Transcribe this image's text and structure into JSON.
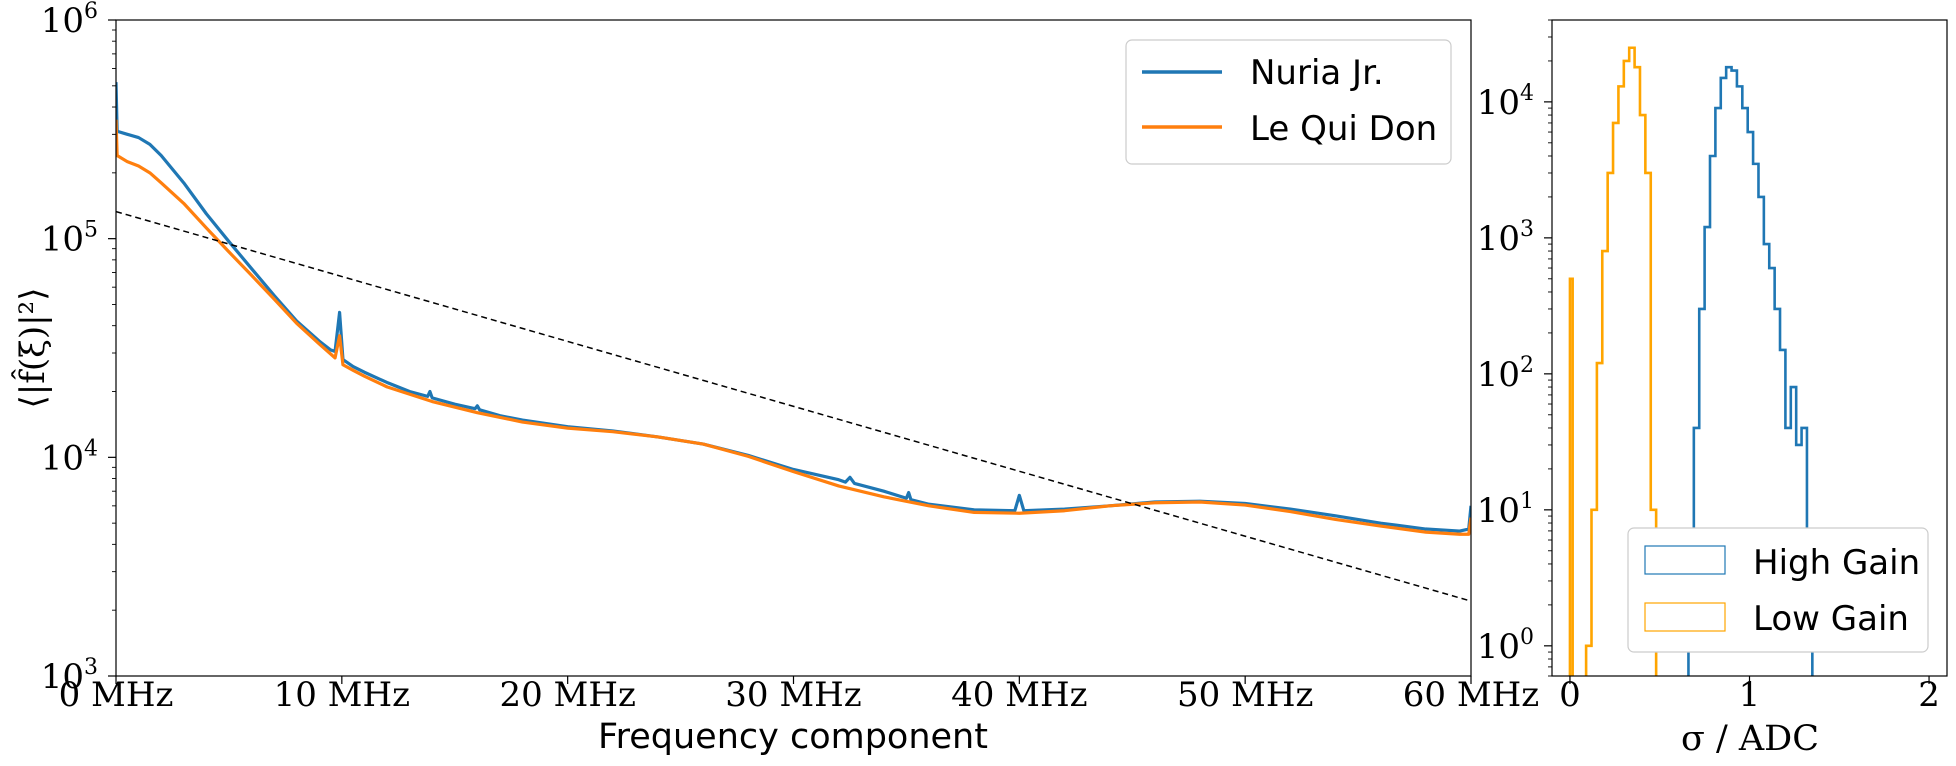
{
  "chart_data": [
    {
      "type": "line",
      "xlabel": "Frequency component",
      "ylabel": "⟨|f̂(ξ)|²⟩",
      "x_unit": "MHz",
      "xlim": [
        0,
        60
      ],
      "ylim": [
        1000,
        1000000
      ],
      "yscale": "log",
      "grid": false,
      "legend_position": "top-right",
      "x_ticks": [
        0,
        10,
        20,
        30,
        40,
        50,
        60
      ],
      "x_tick_labels": [
        "0 MHz",
        "10 MHz",
        "20 MHz",
        "30 MHz",
        "40 MHz",
        "50 MHz",
        "60 MHz"
      ],
      "y_ticks": [
        1000,
        10000,
        100000,
        1000000
      ],
      "y_tick_labels": [
        {
          "base": "10",
          "exp": "3"
        },
        {
          "base": "10",
          "exp": "4"
        },
        {
          "base": "10",
          "exp": "5"
        },
        {
          "base": "10",
          "exp": "6"
        }
      ],
      "series": [
        {
          "name": "Nuria Jr.",
          "color": "#1f77b4",
          "points": [
            [
              0,
              520000
            ],
            [
              0.05,
              310000
            ],
            [
              0.5,
              300000
            ],
            [
              1,
              290000
            ],
            [
              1.5,
              270000
            ],
            [
              2,
              240000
            ],
            [
              3,
              180000
            ],
            [
              4,
              130000
            ],
            [
              5,
              97000
            ],
            [
              6,
              73000
            ],
            [
              7,
              55000
            ],
            [
              8,
              42000
            ],
            [
              9,
              34000
            ],
            [
              9.5,
              31000
            ],
            [
              9.7,
              30500
            ],
            [
              9.9,
              46000
            ],
            [
              10.05,
              28000
            ],
            [
              10.5,
              26000
            ],
            [
              11,
              24500
            ],
            [
              12,
              22000
            ],
            [
              13,
              20000
            ],
            [
              13.8,
              19000
            ],
            [
              13.9,
              20000
            ],
            [
              14,
              18700
            ],
            [
              15,
              17500
            ],
            [
              15.9,
              16700
            ],
            [
              16,
              17200
            ],
            [
              16.1,
              16500
            ],
            [
              17,
              15500
            ],
            [
              18,
              14800
            ],
            [
              20,
              13800
            ],
            [
              22,
              13200
            ],
            [
              24,
              12400
            ],
            [
              26,
              11500
            ],
            [
              28,
              10200
            ],
            [
              30,
              8800
            ],
            [
              32,
              7900
            ],
            [
              32.3,
              7700
            ],
            [
              32.5,
              8100
            ],
            [
              32.7,
              7600
            ],
            [
              34,
              7000
            ],
            [
              35,
              6500
            ],
            [
              35.1,
              6900
            ],
            [
              35.2,
              6400
            ],
            [
              36,
              6100
            ],
            [
              38,
              5750
            ],
            [
              39.8,
              5700
            ],
            [
              40,
              6700
            ],
            [
              40.2,
              5700
            ],
            [
              42,
              5800
            ],
            [
              44,
              6000
            ],
            [
              46,
              6250
            ],
            [
              48,
              6300
            ],
            [
              50,
              6150
            ],
            [
              52,
              5800
            ],
            [
              54,
              5400
            ],
            [
              56,
              5000
            ],
            [
              58,
              4700
            ],
            [
              59.5,
              4600
            ],
            [
              59.9,
              4700
            ],
            [
              60,
              6000
            ]
          ]
        },
        {
          "name": "Le Qui Don",
          "color": "#ff7f0e",
          "points": [
            [
              0,
              350000
            ],
            [
              0.05,
              240000
            ],
            [
              0.5,
              225000
            ],
            [
              1,
              215000
            ],
            [
              1.5,
              200000
            ],
            [
              2,
              180000
            ],
            [
              3,
              145000
            ],
            [
              4,
              112000
            ],
            [
              5,
              87000
            ],
            [
              6,
              68000
            ],
            [
              7,
              53000
            ],
            [
              8,
              41000
            ],
            [
              9,
              33000
            ],
            [
              9.7,
              28500
            ],
            [
              9.9,
              36000
            ],
            [
              10.05,
              26500
            ],
            [
              10.5,
              25000
            ],
            [
              11,
              23500
            ],
            [
              12,
              21000
            ],
            [
              14,
              18000
            ],
            [
              16,
              16000
            ],
            [
              18,
              14500
            ],
            [
              20,
              13600
            ],
            [
              22,
              13100
            ],
            [
              24,
              12400
            ],
            [
              26,
              11500
            ],
            [
              28,
              10100
            ],
            [
              30,
              8600
            ],
            [
              32,
              7400
            ],
            [
              34,
              6600
            ],
            [
              36,
              6000
            ],
            [
              38,
              5600
            ],
            [
              40,
              5550
            ],
            [
              42,
              5700
            ],
            [
              44,
              6000
            ],
            [
              46,
              6200
            ],
            [
              48,
              6250
            ],
            [
              50,
              6050
            ],
            [
              52,
              5650
            ],
            [
              54,
              5200
            ],
            [
              56,
              4850
            ],
            [
              58,
              4550
            ],
            [
              59.5,
              4450
            ],
            [
              59.9,
              4450
            ],
            [
              60,
              5300
            ]
          ]
        },
        {
          "name": "",
          "style": "dashed",
          "color": "#000000",
          "points": [
            [
              0,
              133000
            ],
            [
              60,
              2200
            ]
          ]
        }
      ]
    },
    {
      "type": "histogram",
      "xlabel": "σ / ADC",
      "xlim": [
        -0.1,
        2.1
      ],
      "ylim": [
        0.6,
        40000
      ],
      "yscale": "log",
      "grid": false,
      "legend_position": "bottom-right",
      "x_ticks": [
        0,
        1,
        2
      ],
      "x_tick_labels": [
        "0",
        "1",
        "2"
      ],
      "y_ticks": [
        1,
        10,
        100,
        1000,
        10000
      ],
      "y_tick_labels": [
        {
          "base": "10",
          "exp": "0"
        },
        {
          "base": "10",
          "exp": "1"
        },
        {
          "base": "10",
          "exp": "2"
        },
        {
          "base": "10",
          "exp": "3"
        },
        {
          "base": "10",
          "exp": "4"
        }
      ],
      "series": [
        {
          "name": "High Gain",
          "color": "#1f77b4",
          "bin_edges": [
            0.66,
            0.69,
            0.72,
            0.75,
            0.78,
            0.81,
            0.84,
            0.87,
            0.9,
            0.93,
            0.96,
            0.99,
            1.02,
            1.05,
            1.08,
            1.11,
            1.14,
            1.17,
            1.2,
            1.23,
            1.26,
            1.29,
            1.32,
            1.35
          ],
          "counts": [
            2,
            40,
            300,
            1200,
            4000,
            9000,
            15000,
            18000,
            17000,
            13000,
            9000,
            6000,
            3500,
            2000,
            900,
            600,
            300,
            150,
            40,
            80,
            30,
            40,
            1
          ]
        },
        {
          "name": "Low Gain",
          "color": "#ffa500",
          "bin_edges": [
            0.0,
            0.015,
            0.09,
            0.12,
            0.15,
            0.18,
            0.21,
            0.24,
            0.27,
            0.3,
            0.33,
            0.36,
            0.39,
            0.42,
            0.45,
            0.48
          ],
          "counts": [
            500,
            0,
            1,
            10,
            120,
            800,
            3000,
            7000,
            13000,
            20000,
            25000,
            18000,
            8000,
            3000,
            10
          ]
        }
      ]
    }
  ]
}
